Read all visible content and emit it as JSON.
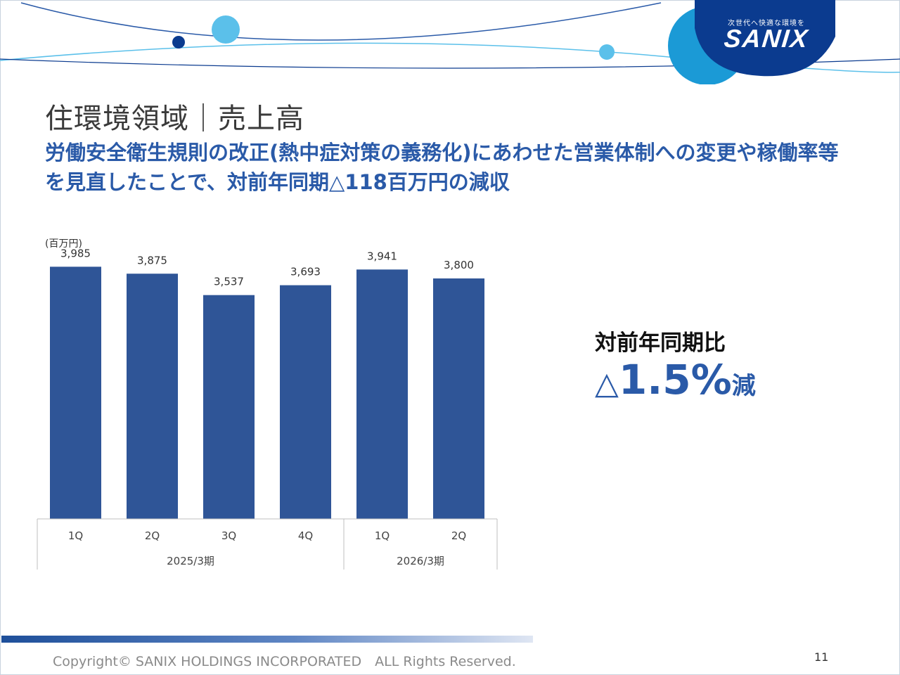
{
  "logo": {
    "tagline": "次世代へ快適な環境を",
    "wordmark": "SANIX"
  },
  "slide": {
    "title": "住環境領域｜売上高",
    "lead": "労働安全衛生規則の改正(熱中症対策の義務化)にあわせた営業体制への変更や稼働率等を見直したことで、対前年同期△118百万円の減収",
    "unit_label": "(百万円)"
  },
  "kpi": {
    "label": "対前年同期比",
    "triangle": "△",
    "value": "1.5%",
    "suffix": "減"
  },
  "chart_data": {
    "type": "bar",
    "categories": [
      "1Q",
      "2Q",
      "3Q",
      "4Q",
      "1Q",
      "2Q"
    ],
    "groups": [
      {
        "label": "2025/3期",
        "categories": [
          "1Q",
          "2Q",
          "3Q",
          "4Q"
        ]
      },
      {
        "label": "2026/3期",
        "categories": [
          "1Q",
          "2Q"
        ]
      }
    ],
    "values": [
      3985,
      3875,
      3537,
      3693,
      3941,
      3800
    ],
    "value_labels": [
      "3,985",
      "3,875",
      "3,537",
      "3,693",
      "3,941",
      "3,800"
    ],
    "ylabel": "(百万円)",
    "ylim": [
      0,
      4200
    ],
    "grid": false,
    "bar_color": "#2f5597"
  },
  "footer": {
    "copyright": "Copyright© SANIX HOLDINGS INCORPORATED　ALL Rights Reserved.",
    "page_number": "11"
  },
  "colors": {
    "accent": "#2a5aa8",
    "bar": "#2f5597",
    "logo_navy": "#0b3b8f",
    "logo_blue": "#1b9ad6",
    "light_blue": "#5bc0ea"
  }
}
